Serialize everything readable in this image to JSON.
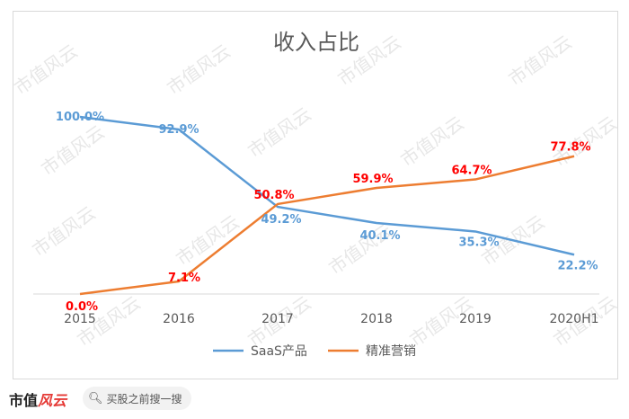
{
  "chart_data": {
    "type": "line",
    "title": "收入占比",
    "categories": [
      "2015",
      "2016",
      "2017",
      "2018",
      "2019",
      "2020H1"
    ],
    "unit": "%",
    "ylim": [
      0,
      100
    ],
    "grid": false,
    "legend_position": "bottom",
    "series": [
      {
        "name": "SaaS产品",
        "color": "#5b9bd5",
        "values": [
          100.0,
          92.9,
          49.2,
          40.1,
          35.3,
          22.2
        ],
        "labels": [
          "100.0%",
          "92.9%",
          "49.2%",
          "40.1%",
          "35.3%",
          "22.2%"
        ]
      },
      {
        "name": "精准营销",
        "color": "#ed7d31",
        "label_color": "#ff0000",
        "values": [
          0.0,
          7.1,
          50.8,
          59.9,
          64.7,
          77.8
        ],
        "labels": [
          "0.0%",
          "7.1%",
          "50.8%",
          "59.9%",
          "64.7%",
          "77.8%"
        ]
      }
    ]
  },
  "watermark": "市值风云",
  "footer": {
    "brand": "市值",
    "brand_script": "风云",
    "search_icon": "search-icon",
    "search_text": "买股之前搜一搜"
  }
}
